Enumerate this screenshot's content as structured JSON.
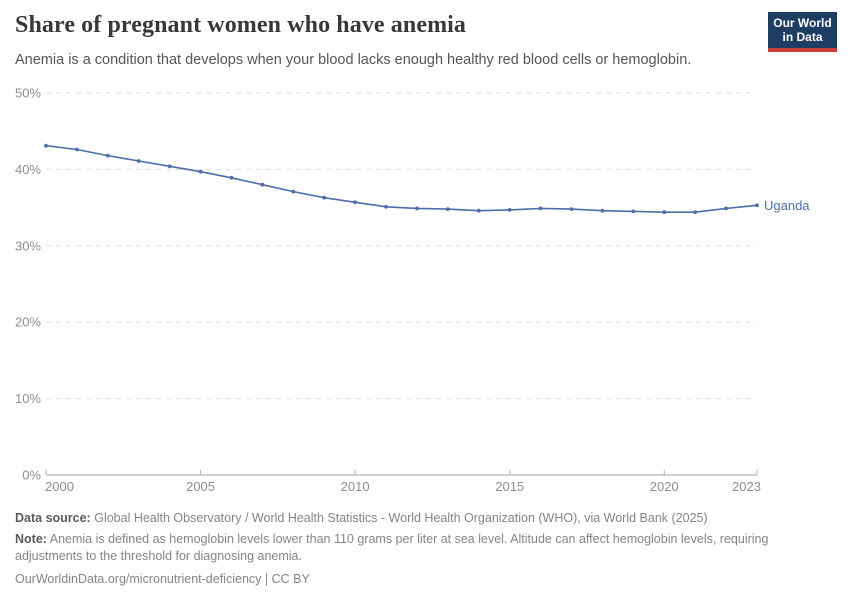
{
  "header": {
    "title": "Share of pregnant women who have anemia",
    "subtitle": "Anemia is a condition that develops when your blood lacks enough healthy red blood cells or hemoglobin."
  },
  "logo": {
    "line1": "Our World",
    "line2": "in Data",
    "bg_color": "#1d3d63",
    "strip_color": "#c9413a"
  },
  "chart_data": {
    "type": "line",
    "title": "Share of pregnant women who have anemia",
    "xlabel": "",
    "ylabel": "",
    "xlim": [
      2000,
      2023
    ],
    "ylim": [
      0,
      50
    ],
    "grid": "horizontal-dashed",
    "legend_position": "end-of-line-label",
    "xticks": [
      2000,
      2005,
      2010,
      2015,
      2020,
      2023
    ],
    "yticks": [
      0,
      10,
      20,
      30,
      40,
      50
    ],
    "ytick_labels": [
      "0%",
      "10%",
      "20%",
      "30%",
      "40%",
      "50%"
    ],
    "series": [
      {
        "name": "Uganda",
        "color": "#4d6ea8",
        "x": [
          2000,
          2001,
          2002,
          2003,
          2004,
          2005,
          2006,
          2007,
          2008,
          2009,
          2010,
          2011,
          2012,
          2013,
          2014,
          2015,
          2016,
          2017,
          2018,
          2019,
          2020,
          2021,
          2022,
          2023
        ],
        "values": [
          43.1,
          42.6,
          41.8,
          41.1,
          40.4,
          39.7,
          38.9,
          38.0,
          37.1,
          36.3,
          35.7,
          35.1,
          34.9,
          34.8,
          34.6,
          34.7,
          34.9,
          34.8,
          34.6,
          34.5,
          34.4,
          34.4,
          34.9,
          35.3
        ]
      }
    ],
    "colors": {
      "gridline": "#dedede",
      "axis": "#a3a3a3",
      "tick": "#b5b5b5",
      "tick_label": "#8f8f8f"
    }
  },
  "footer": {
    "data_source_label": "Data source:",
    "data_source_text": "Global Health Observatory / World Health Statistics - World Health Organization (WHO), via World Bank (2025)",
    "note_label": "Note:",
    "note_text": "Anemia is defined as hemoglobin levels lower than 110 grams per liter at sea level. Altitude can affect hemoglobin levels, requiring adjustments to the threshold for diagnosing anemia.",
    "citation": "OurWorldinData.org/micronutrient-deficiency | CC BY"
  }
}
